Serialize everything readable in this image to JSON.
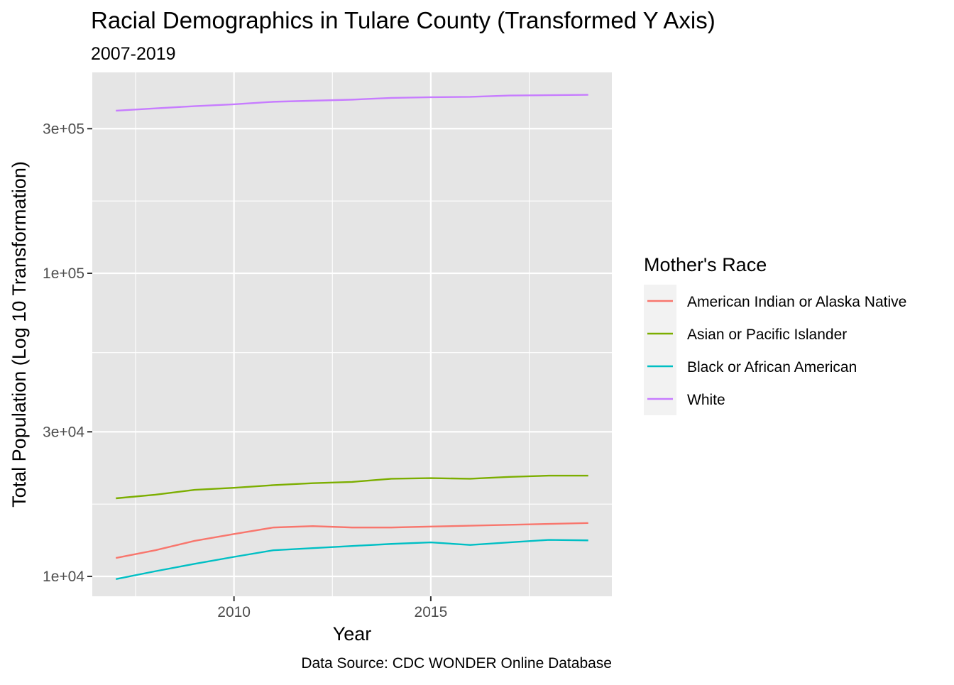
{
  "chart_data": {
    "type": "line",
    "title": "Racial Demographics in Tulare County (Transformed Y Axis)",
    "subtitle": "2007-2019",
    "xlabel": "Year",
    "ylabel": "Total Population (Log 10 Transformation)",
    "caption": "Data Source: CDC WONDER Online Database",
    "y_scale": "log10",
    "xlim": [
      2006.4,
      2019.6
    ],
    "ylim": [
      8600,
      460000
    ],
    "x_ticks": [
      2010,
      2015
    ],
    "x_tick_labels": [
      "2010",
      "2015"
    ],
    "y_ticks": [
      10000,
      30000,
      100000,
      300000
    ],
    "y_tick_labels": [
      "1e+04",
      "3e+04",
      "1e+05",
      "3e+05"
    ],
    "legend": {
      "title": "Mother's Race",
      "position": "right"
    },
    "grid": true,
    "x": [
      2007,
      2008,
      2009,
      2010,
      2011,
      2012,
      2013,
      2014,
      2015,
      2016,
      2017,
      2018,
      2019
    ],
    "series": [
      {
        "name": "American Indian or Alaska Native",
        "color": "#F8766D",
        "values": [
          11500,
          12200,
          13100,
          13800,
          14500,
          14650,
          14500,
          14500,
          14600,
          14700,
          14800,
          14900,
          15000
        ]
      },
      {
        "name": "Asian or Pacific Islander",
        "color": "#7CAE00",
        "values": [
          18100,
          18600,
          19300,
          19600,
          20000,
          20300,
          20500,
          21000,
          21100,
          21000,
          21300,
          21500,
          21500
        ]
      },
      {
        "name": "Black or African American",
        "color": "#00BFC4",
        "values": [
          9800,
          10400,
          11000,
          11600,
          12200,
          12400,
          12600,
          12800,
          12950,
          12700,
          12950,
          13200,
          13150
        ]
      },
      {
        "name": "White",
        "color": "#C77CFF",
        "values": [
          344000,
          350000,
          356000,
          361000,
          368000,
          371000,
          374000,
          379000,
          381000,
          382000,
          386000,
          387000,
          388000
        ]
      }
    ]
  },
  "colors": {
    "panel_background": "#E5E5E5",
    "grid": "#FFFFFF",
    "legend_key_background": "#F2F2F2"
  }
}
